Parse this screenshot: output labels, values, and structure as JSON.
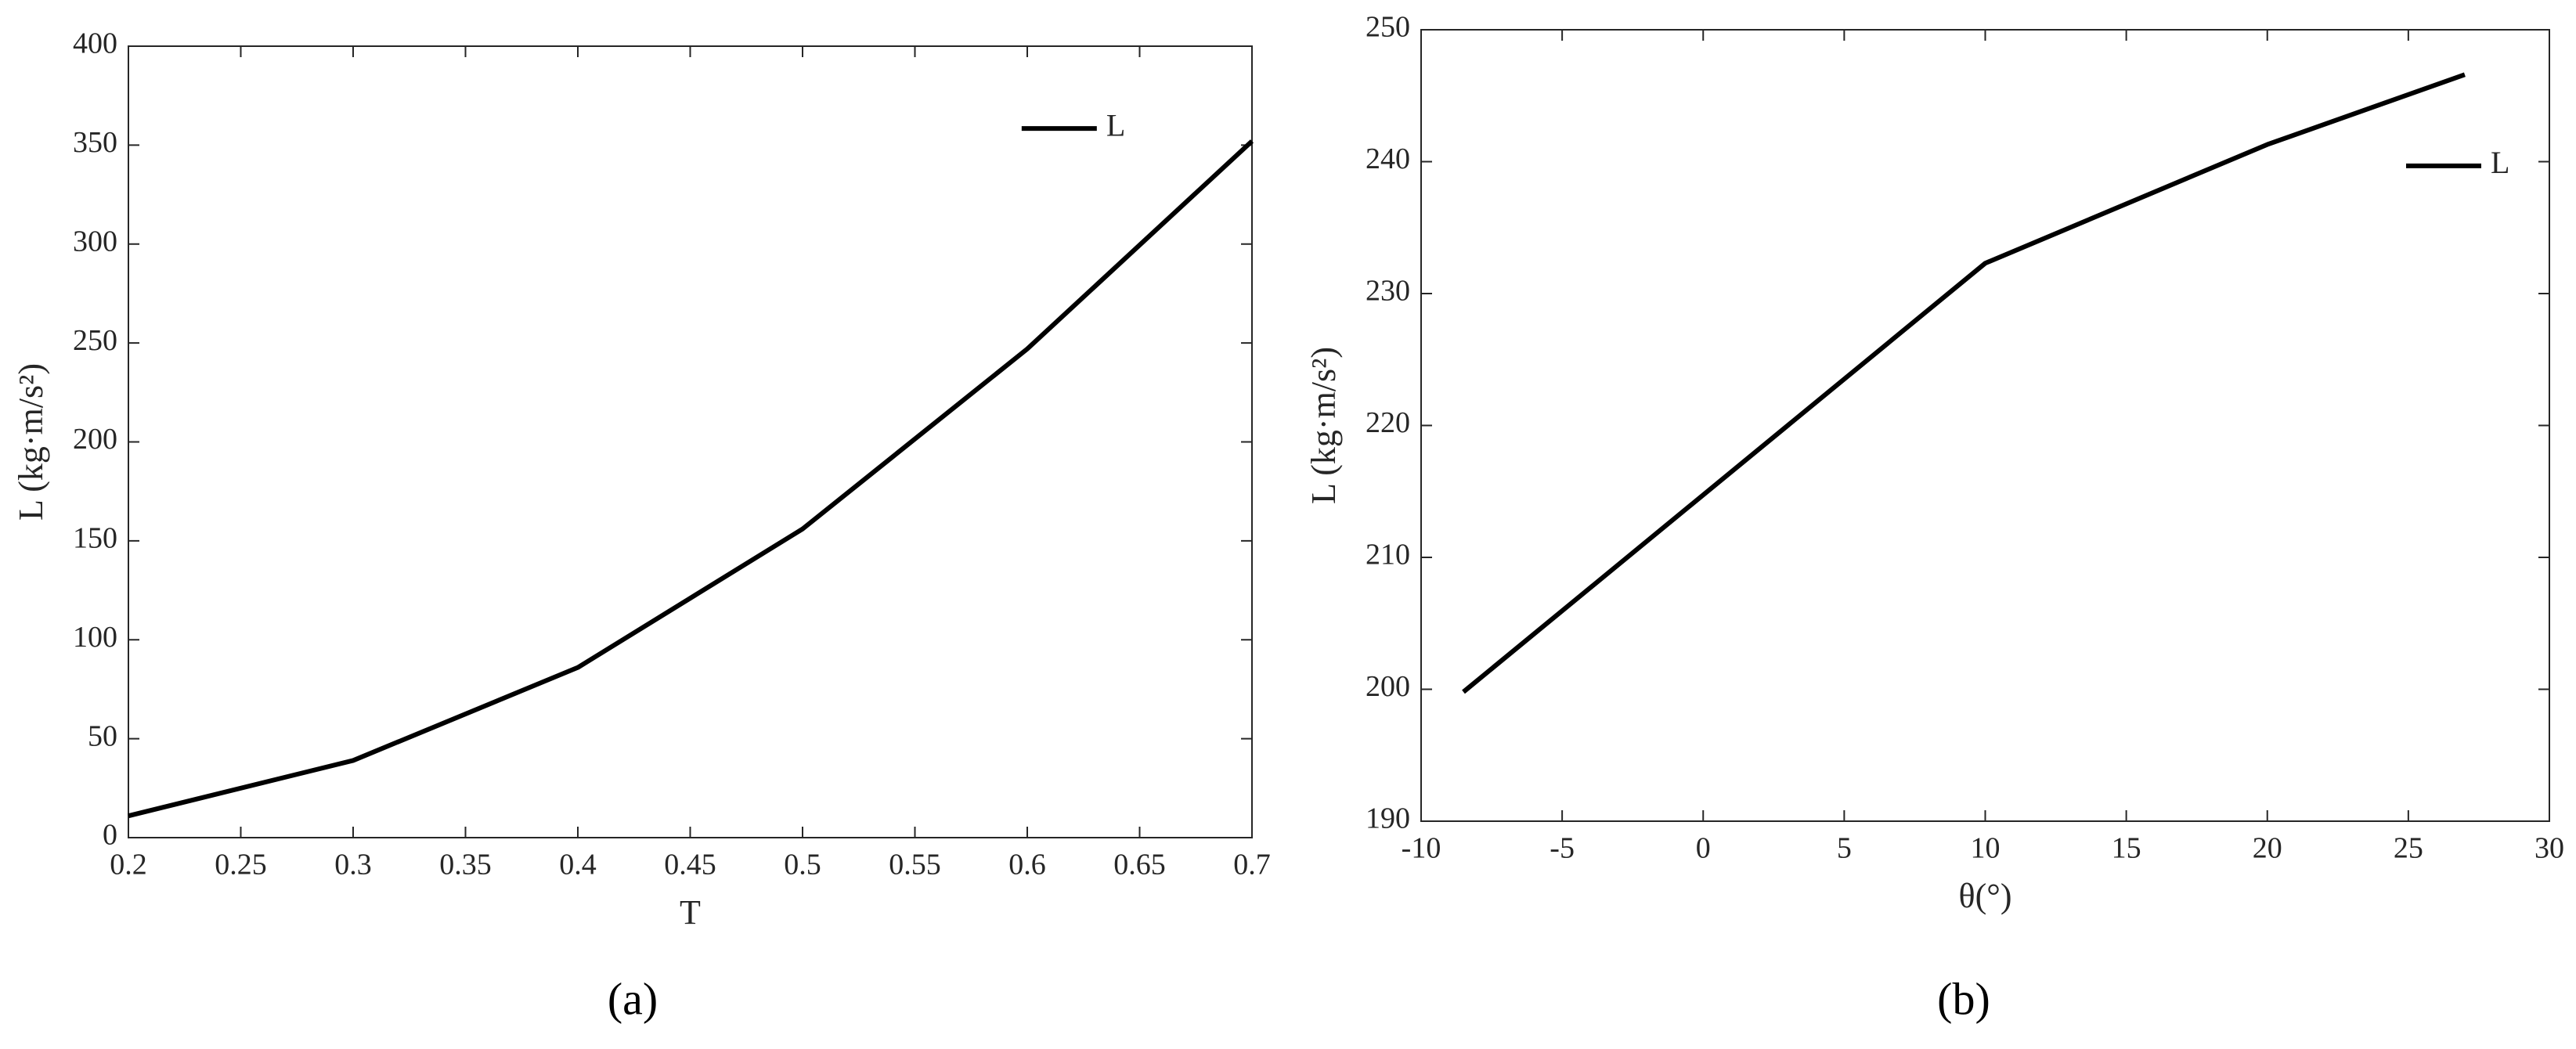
{
  "chart_data": [
    {
      "type": "line",
      "caption": "(a)",
      "xlabel": "T",
      "ylabel": "L (kg·m/s²)",
      "x": [
        0.2,
        0.3,
        0.4,
        0.5,
        0.6,
        0.7
      ],
      "series": [
        {
          "name": "L",
          "color": "#000000",
          "values": [
            11,
            39,
            86,
            156,
            247,
            352
          ]
        }
      ],
      "xlim": [
        0.2,
        0.7
      ],
      "xticks": [
        0.2,
        0.25,
        0.3,
        0.35,
        0.4,
        0.45,
        0.5,
        0.55,
        0.6,
        0.65,
        0.7
      ],
      "ylim": [
        0,
        400
      ],
      "yticks": [
        0,
        50,
        100,
        150,
        200,
        250,
        300,
        350,
        400
      ],
      "legend": "upper right",
      "grid": false
    },
    {
      "type": "line",
      "caption": "(b)",
      "xlabel": "θ(°)",
      "ylabel": "L (kg·m/s²)",
      "x": [
        -8.5,
        10,
        20,
        27
      ],
      "series": [
        {
          "name": "L",
          "color": "#000000",
          "values": [
            199.8,
            232.3,
            241.3,
            246.6
          ]
        }
      ],
      "xlim": [
        -10,
        30
      ],
      "xticks": [
        -10,
        -5,
        0,
        5,
        10,
        15,
        20,
        25,
        30
      ],
      "ylim": [
        190,
        250
      ],
      "yticks": [
        190,
        200,
        210,
        220,
        230,
        240,
        250
      ],
      "legend": "upper right",
      "grid": false
    }
  ]
}
